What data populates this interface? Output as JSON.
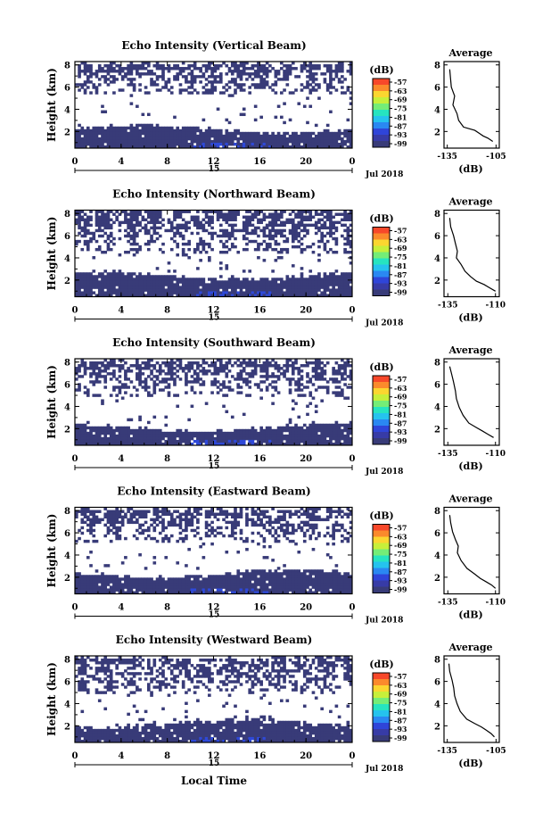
{
  "figure": {
    "xlabel_bottom": "Local Time",
    "date_label": "Jul 2018",
    "date_tick": "15"
  },
  "colorbar": {
    "unit": "(dB)",
    "ticks": [
      "-57",
      "-63",
      "-69",
      "-75",
      "-81",
      "-87",
      "-93",
      "-99"
    ],
    "colors": [
      "#f7482a",
      "#fb8a2c",
      "#fbd630",
      "#c7ef3a",
      "#74ed77",
      "#26e4c0",
      "#25c3ee",
      "#2a88f2",
      "#2f45d9",
      "#373ba6",
      "#383b78"
    ]
  },
  "heatmap_colors": {
    "fill": "#383b78",
    "strong": "#2e49d8"
  },
  "chart_data": [
    {
      "type": "heatmap",
      "title": "Echo Intensity (Vertical Beam)",
      "ylabel": "Height (km)",
      "x_ticks": [
        "0",
        "4",
        "8",
        "12",
        "16",
        "20",
        "0"
      ],
      "y_ticks": [
        "2",
        "4",
        "6",
        "8"
      ],
      "xlim": [
        0,
        24
      ],
      "ylim": [
        0.5,
        8.3
      ],
      "layer_top_km": 2.2,
      "upper_band_km": [
        5.4,
        8.0
      ],
      "profile": {
        "title": "Average",
        "xlabel": "(dB)",
        "x_ticks": [
          "-135",
          "-105"
        ],
        "y_ticks": [
          "2",
          "4",
          "6",
          "8"
        ],
        "xlim": [
          -137,
          -103
        ],
        "ylim": [
          0.5,
          8.3
        ],
        "points": [
          [
            -133.5,
            7.6
          ],
          [
            -133,
            6.8
          ],
          [
            -132.5,
            6.0
          ],
          [
            -130.5,
            5.2
          ],
          [
            -131.5,
            4.4
          ],
          [
            -129,
            3.6
          ],
          [
            -128,
            3.0
          ],
          [
            -125,
            2.4
          ],
          [
            -118,
            2.1
          ],
          [
            -115,
            1.8
          ],
          [
            -113,
            1.6
          ],
          [
            -110,
            1.4
          ],
          [
            -107,
            1.1
          ]
        ]
      }
    },
    {
      "type": "heatmap",
      "title": "Echo Intensity (Northward Beam)",
      "ylabel": "Height (km)",
      "x_ticks": [
        "0",
        "4",
        "8",
        "12",
        "16",
        "20",
        "0"
      ],
      "y_ticks": [
        "2",
        "4",
        "6",
        "8"
      ],
      "xlim": [
        0,
        24
      ],
      "ylim": [
        0.5,
        8.3
      ],
      "layer_top_km": 2.4,
      "upper_band_km": [
        4.3,
        8.2
      ],
      "profile": {
        "title": "Average",
        "xlabel": "(dB)",
        "x_ticks": [
          "-135",
          "-110"
        ],
        "y_ticks": [
          "2",
          "4",
          "6",
          "8"
        ],
        "xlim": [
          -137,
          -108
        ],
        "ylim": [
          0.5,
          8.3
        ],
        "points": [
          [
            -134,
            7.6
          ],
          [
            -133.5,
            6.8
          ],
          [
            -132,
            6.0
          ],
          [
            -131,
            5.3
          ],
          [
            -130,
            4.6
          ],
          [
            -130.5,
            4.0
          ],
          [
            -128,
            3.4
          ],
          [
            -126,
            2.8
          ],
          [
            -123,
            2.3
          ],
          [
            -120,
            1.9
          ],
          [
            -116,
            1.6
          ],
          [
            -113,
            1.3
          ],
          [
            -110,
            1.0
          ]
        ]
      }
    },
    {
      "type": "heatmap",
      "title": "Echo Intensity (Southward Beam)",
      "ylabel": "Height (km)",
      "x_ticks": [
        "0",
        "4",
        "8",
        "12",
        "16",
        "20",
        "0"
      ],
      "y_ticks": [
        "2",
        "4",
        "6",
        "8"
      ],
      "xlim": [
        0,
        24
      ],
      "ylim": [
        0.5,
        8.3
      ],
      "layer_top_km": 2.1,
      "upper_band_km": [
        5.0,
        8.0
      ],
      "profile": {
        "title": "Average",
        "xlabel": "(dB)",
        "x_ticks": [
          "-135",
          "-110"
        ],
        "y_ticks": [
          "2",
          "4",
          "6",
          "8"
        ],
        "xlim": [
          -137,
          -108
        ],
        "ylim": [
          0.5,
          8.3
        ],
        "points": [
          [
            -134,
            7.6
          ],
          [
            -133,
            6.9
          ],
          [
            -132,
            6.2
          ],
          [
            -131,
            5.4
          ],
          [
            -130.5,
            4.7
          ],
          [
            -129,
            3.9
          ],
          [
            -127,
            3.2
          ],
          [
            -124,
            2.5
          ],
          [
            -120,
            2.1
          ],
          [
            -117,
            1.8
          ],
          [
            -114,
            1.5
          ],
          [
            -111,
            1.2
          ]
        ]
      }
    },
    {
      "type": "heatmap",
      "title": "Echo Intensity (Eastward Beam)",
      "ylabel": "Height (km)",
      "x_ticks": [
        "0",
        "4",
        "8",
        "12",
        "16",
        "20",
        "0"
      ],
      "y_ticks": [
        "2",
        "4",
        "6",
        "8"
      ],
      "xlim": [
        0,
        24
      ],
      "ylim": [
        0.5,
        8.3
      ],
      "layer_top_km": 2.3,
      "upper_band_km": [
        5.2,
        8.1
      ],
      "profile": {
        "title": "Average",
        "xlabel": "(dB)",
        "x_ticks": [
          "-135",
          "-110"
        ],
        "y_ticks": [
          "2",
          "4",
          "6",
          "8"
        ],
        "xlim": [
          -137,
          -108
        ],
        "ylim": [
          0.5,
          8.3
        ],
        "points": [
          [
            -134,
            7.6
          ],
          [
            -133.5,
            6.9
          ],
          [
            -132.5,
            6.1
          ],
          [
            -131,
            5.4
          ],
          [
            -129.5,
            4.8
          ],
          [
            -130,
            4.2
          ],
          [
            -128,
            3.5
          ],
          [
            -125,
            2.8
          ],
          [
            -121,
            2.3
          ],
          [
            -118,
            1.9
          ],
          [
            -115,
            1.6
          ],
          [
            -112,
            1.3
          ],
          [
            -110,
            1.0
          ]
        ]
      }
    },
    {
      "type": "heatmap",
      "title": "Echo Intensity (Westward Beam)",
      "ylabel": "Height (km)",
      "x_ticks": [
        "0",
        "4",
        "8",
        "12",
        "16",
        "20",
        "0"
      ],
      "y_ticks": [
        "2",
        "4",
        "6",
        "8"
      ],
      "xlim": [
        0,
        24
      ],
      "ylim": [
        0.5,
        8.3
      ],
      "layer_top_km": 2.2,
      "upper_band_km": [
        5.0,
        8.1
      ],
      "profile": {
        "title": "Average",
        "xlabel": "(dB)",
        "x_ticks": [
          "-135",
          "-105"
        ],
        "y_ticks": [
          "2",
          "4",
          "6",
          "8"
        ],
        "xlim": [
          -137,
          -103
        ],
        "ylim": [
          0.5,
          8.3
        ],
        "points": [
          [
            -134,
            7.6
          ],
          [
            -133.5,
            6.9
          ],
          [
            -132,
            6.1
          ],
          [
            -131,
            5.4
          ],
          [
            -130.5,
            4.7
          ],
          [
            -129,
            4.0
          ],
          [
            -127,
            3.3
          ],
          [
            -123,
            2.6
          ],
          [
            -118,
            2.2
          ],
          [
            -114,
            1.9
          ],
          [
            -111,
            1.6
          ],
          [
            -108,
            1.3
          ],
          [
            -106,
            1.0
          ]
        ]
      }
    }
  ]
}
